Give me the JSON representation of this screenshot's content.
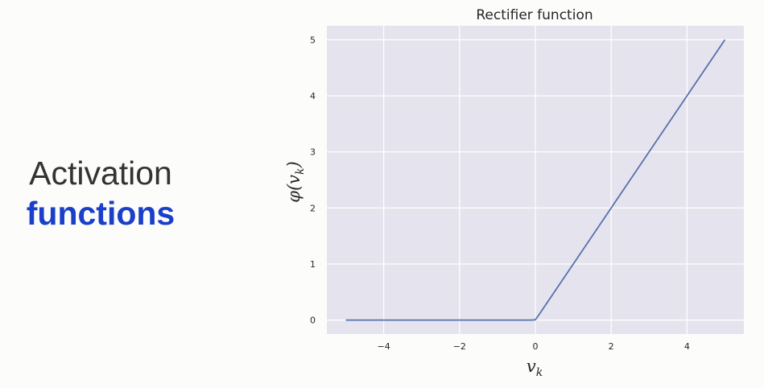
{
  "slide": {
    "title_line1": "Activation",
    "title_line2": "functions",
    "title_line2_color": "#1a3fc9"
  },
  "chart_data": {
    "type": "line",
    "title": "Rectifier function",
    "xlabel": "v_k",
    "ylabel": "φ(v_k)",
    "xlim": [
      -5.5,
      5.5
    ],
    "ylim": [
      -0.25,
      5.25
    ],
    "xticks": [
      -4,
      -2,
      0,
      2,
      4
    ],
    "xtick_labels": [
      "−4",
      "−2",
      "0",
      "2",
      "4"
    ],
    "yticks": [
      0,
      1,
      2,
      3,
      4,
      5
    ],
    "ytick_labels": [
      "0",
      "1",
      "2",
      "3",
      "4",
      "5"
    ],
    "grid": true,
    "background": "#e5e4ee",
    "grid_color": "#ffffff",
    "series": [
      {
        "color": "#5572ad",
        "x": [
          -5,
          -4,
          -3,
          -2,
          -1,
          -0.1,
          0,
          0.1,
          1,
          2,
          3,
          4,
          5
        ],
        "y": [
          0,
          0,
          0,
          0,
          0,
          0,
          0.005,
          0.1,
          1,
          2,
          3,
          4,
          5
        ]
      }
    ]
  }
}
